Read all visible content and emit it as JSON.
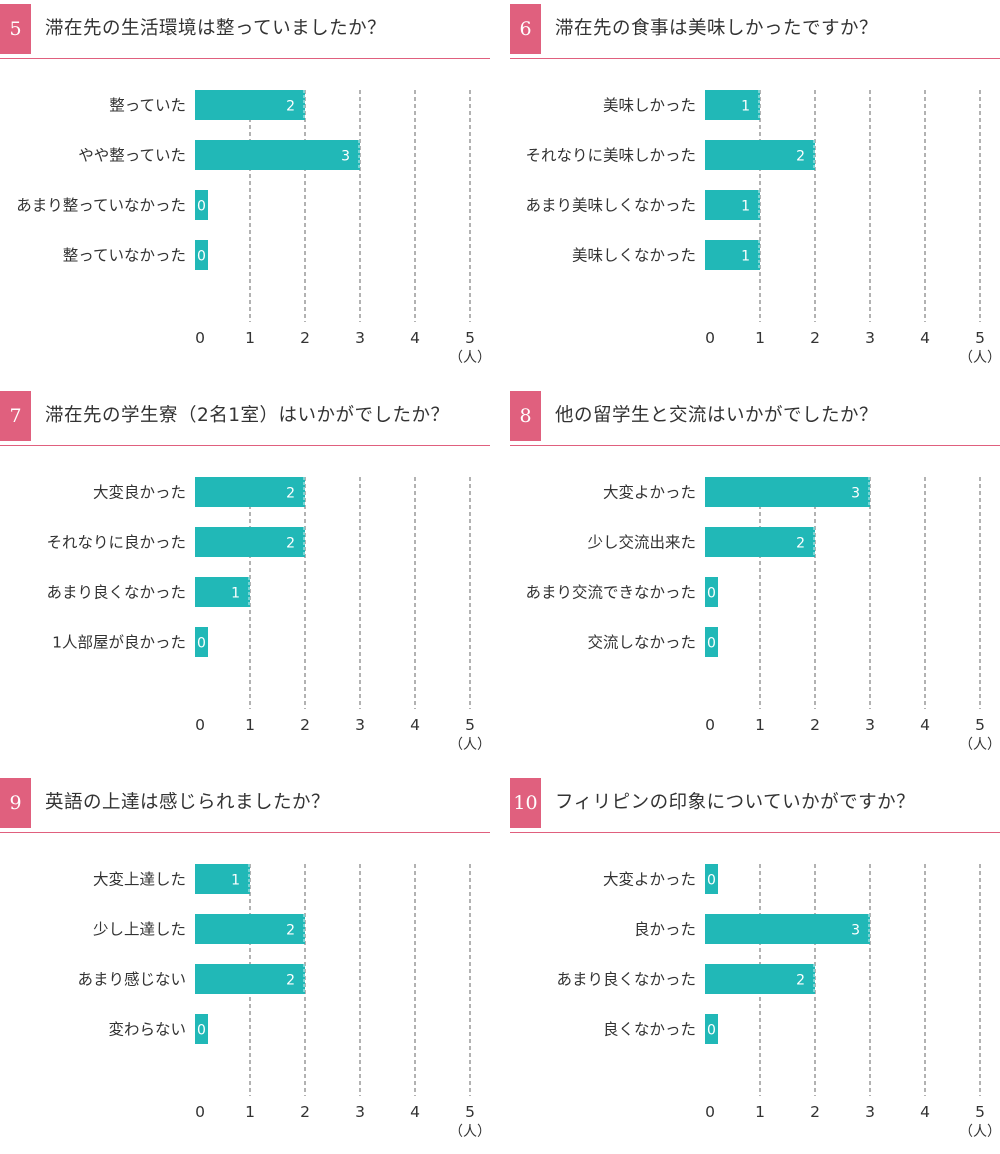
{
  "colors": {
    "accent": "#e0607e",
    "bar": "#21b8b7",
    "grid": "#666666",
    "text": "#333333"
  },
  "chart_data": [
    {
      "type": "bar",
      "number": "5",
      "title": "滞在先の生活環境は整っていましたか？",
      "categories": [
        "整っていた",
        "やや整っていた",
        "あまり整っていなかった",
        "整っていなかった"
      ],
      "values": [
        2,
        3,
        0,
        0
      ],
      "xlim": [
        0,
        5
      ],
      "xticks": [
        "0",
        "1",
        "2",
        "3",
        "4",
        "5"
      ],
      "unit": "（人）"
    },
    {
      "type": "bar",
      "number": "6",
      "title": "滞在先の食事は美味しかったですか？",
      "categories": [
        "美味しかった",
        "それなりに美味しかった",
        "あまり美味しくなかった",
        "美味しくなかった"
      ],
      "values": [
        1,
        2,
        1,
        1
      ],
      "xlim": [
        0,
        5
      ],
      "xticks": [
        "0",
        "1",
        "2",
        "3",
        "4",
        "5"
      ],
      "unit": "（人）"
    },
    {
      "type": "bar",
      "number": "7",
      "title": "滞在先の学生寮（2名1室）はいかがでしたか？",
      "categories": [
        "大変良かった",
        "それなりに良かった",
        "あまり良くなかった",
        "1人部屋が良かった"
      ],
      "values": [
        2,
        2,
        1,
        0
      ],
      "xlim": [
        0,
        5
      ],
      "xticks": [
        "0",
        "1",
        "2",
        "3",
        "4",
        "5"
      ],
      "unit": "（人）"
    },
    {
      "type": "bar",
      "number": "8",
      "title": "他の留学生と交流はいかがでしたか？",
      "categories": [
        "大変よかった",
        "少し交流出来た",
        "あまり交流できなかった",
        "交流しなかった"
      ],
      "values": [
        3,
        2,
        0,
        0
      ],
      "xlim": [
        0,
        5
      ],
      "xticks": [
        "0",
        "1",
        "2",
        "3",
        "4",
        "5"
      ],
      "unit": "（人）"
    },
    {
      "type": "bar",
      "number": "9",
      "title": "英語の上達は感じられましたか？",
      "categories": [
        "大変上達した",
        "少し上達した",
        "あまり感じない",
        "変わらない"
      ],
      "values": [
        1,
        2,
        2,
        0
      ],
      "xlim": [
        0,
        5
      ],
      "xticks": [
        "0",
        "1",
        "2",
        "3",
        "4",
        "5"
      ],
      "unit": "（人）"
    },
    {
      "type": "bar",
      "number": "10",
      "title": "フィリピンの印象についていかがですか？",
      "categories": [
        "大変よかった",
        "良かった",
        "あまり良くなかった",
        "良くなかった"
      ],
      "values": [
        0,
        3,
        2,
        0
      ],
      "xlim": [
        0,
        5
      ],
      "xticks": [
        "0",
        "1",
        "2",
        "3",
        "4",
        "5"
      ],
      "unit": "（人）"
    }
  ]
}
